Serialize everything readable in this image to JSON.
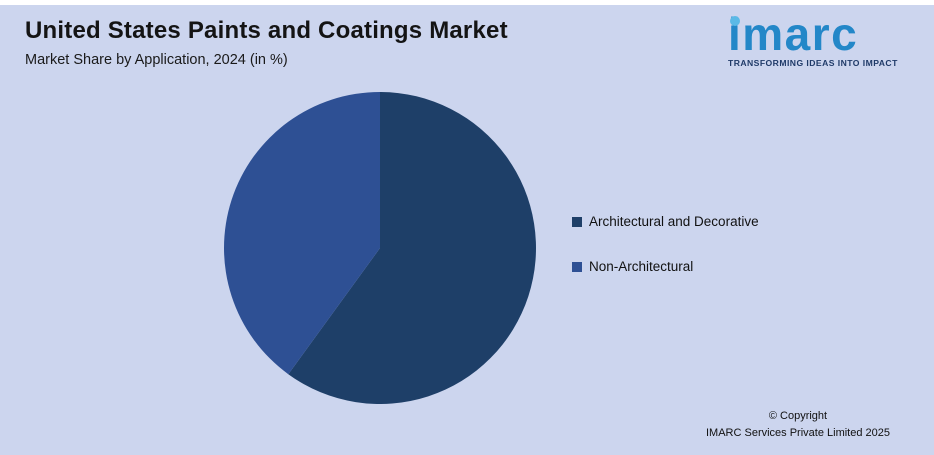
{
  "header": {
    "title": "United States Paints and Coatings Market",
    "subtitle": "Market Share by Application, 2024 (in %)"
  },
  "logo": {
    "text": "imarc",
    "tagline": "TRANSFORMING IDEAS INTO IMPACT",
    "brand_blue": "#2387c8",
    "dot_blue": "#5bb9e6",
    "tagline_navy": "#1f3a68"
  },
  "chart_data": {
    "type": "pie",
    "title": "United States Paints and Coatings Market",
    "subtitle": "Market Share by Application, 2024 (in %)",
    "labels": [
      "Architectural and Decorative",
      "Non-Architectural"
    ],
    "values": [
      60,
      40
    ],
    "colors": [
      "#1e3f68",
      "#2e5094"
    ],
    "start_angle_deg": 0,
    "direction": "clockwise",
    "legend_position": "right",
    "data_labels": false
  },
  "legend": {
    "items": [
      {
        "label": "Architectural and Decorative",
        "color": "#1e3f68"
      },
      {
        "label": "Non-Architectural",
        "color": "#2e5094"
      }
    ]
  },
  "footer": {
    "copyright_line1": "© Copyright",
    "copyright_line2": "IMARC Services Private Limited 2025"
  },
  "page": {
    "background": "#ccd5ee"
  }
}
